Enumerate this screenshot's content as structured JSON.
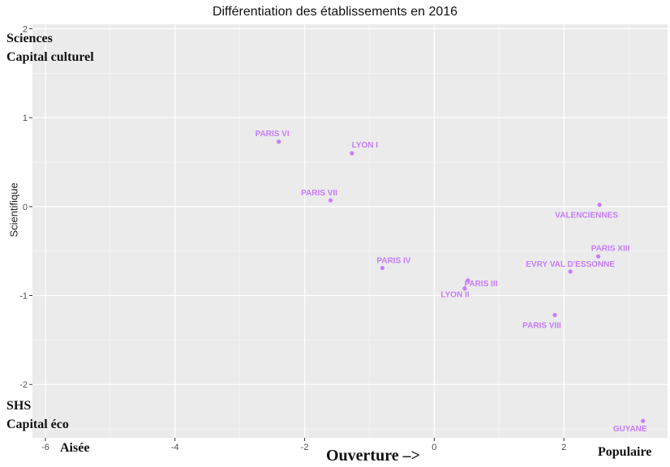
{
  "chart_data": {
    "type": "scatter",
    "title": "Différentiation des établissements en 2016",
    "xlabel": "Ouverture –>",
    "ylabel": "Scientifique",
    "xlim": [
      -6.2,
      3.6
    ],
    "ylim": [
      -2.6,
      2.05
    ],
    "x_ticks": [
      -6,
      -4,
      -2,
      0,
      2
    ],
    "y_ticks": [
      -2,
      -1,
      0,
      1,
      2
    ],
    "grid": true,
    "point_color": "#c77cff",
    "points": [
      {
        "label": "PARIS VI",
        "x": -2.4,
        "y": 0.73
      },
      {
        "label": "LYON I",
        "x": -1.27,
        "y": 0.6
      },
      {
        "label": "PARIS VII",
        "x": -1.6,
        "y": 0.07
      },
      {
        "label": "VALENCIENNES",
        "x": 2.55,
        "y": 0.02
      },
      {
        "label": "PARIS XIII",
        "x": 2.53,
        "y": -0.56
      },
      {
        "label": "EVRY VAL D'ESSONNE",
        "x": 2.1,
        "y": -0.73
      },
      {
        "label": "PARIS IV",
        "x": -0.8,
        "y": -0.69
      },
      {
        "label": "PARIS III",
        "x": 0.52,
        "y": -0.83
      },
      {
        "label": "LYON II",
        "x": 0.47,
        "y": -0.92
      },
      {
        "label": "PARIS VIII",
        "x": 1.86,
        "y": -1.22
      },
      {
        "label": "GUYANE",
        "x": 3.22,
        "y": -2.41
      }
    ]
  },
  "annotations": {
    "top_left_1": "Sciences",
    "top_left_2": "Capital culturel",
    "bottom_left_1": "SHS",
    "bottom_left_2": "Capital éco",
    "x_left": "Aisée",
    "x_right": "Populaire"
  }
}
